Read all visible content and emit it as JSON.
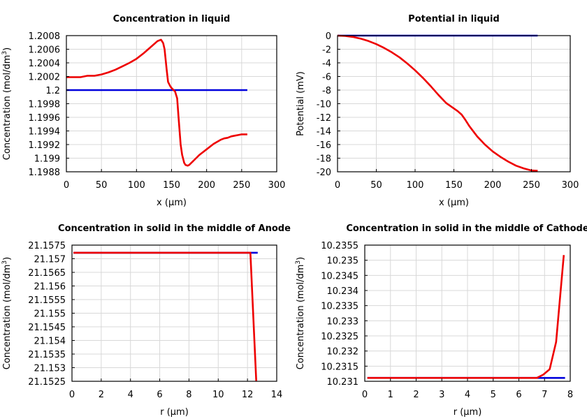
{
  "figure": {
    "background": "#ffffff"
  },
  "chart_data": [
    {
      "type": "line",
      "title": "Concentration in liquid",
      "xlabel": "x (µm)",
      "ylabel": "Concentration (mol/dm³)",
      "xlim": [
        0,
        300
      ],
      "ylim": [
        1.1988,
        1.2008
      ],
      "xticks": [
        0,
        50,
        100,
        150,
        200,
        250,
        300
      ],
      "xtick_labels": [
        "0",
        "50",
        "100",
        "150",
        "200",
        "250",
        "300"
      ],
      "yticks": [
        1.1988,
        1.199,
        1.1992,
        1.1994,
        1.1996,
        1.1998,
        1.2,
        1.2002,
        1.2004,
        1.2006,
        1.2008
      ],
      "ytick_labels": [
        "1.1988",
        "1.199",
        "1.1992",
        "1.1994",
        "1.1996",
        "1.1998",
        "1.2",
        "1.2002",
        "1.2004",
        "1.2006",
        "1.2008"
      ],
      "grid": true,
      "series": [
        {
          "color": "#0000dd",
          "x": [
            0,
            258
          ],
          "y": [
            1.2,
            1.2
          ]
        },
        {
          "color": "#ee0000",
          "x": [
            0,
            5,
            10,
            20,
            25,
            30,
            40,
            50,
            60,
            70,
            80,
            90,
            100,
            110,
            120,
            130,
            135,
            138,
            140,
            143,
            145,
            148,
            150,
            155,
            158,
            160,
            163,
            165,
            168,
            170,
            173,
            175,
            180,
            185,
            190,
            200,
            210,
            220,
            225,
            230,
            235,
            240,
            245,
            250,
            258
          ],
          "y": [
            1.20019,
            1.20019,
            1.20019,
            1.20019,
            1.2002,
            1.20021,
            1.20021,
            1.20023,
            1.20026,
            1.2003,
            1.20035,
            1.2004,
            1.20046,
            1.20054,
            1.20063,
            1.20072,
            1.20074,
            1.20069,
            1.2006,
            1.2003,
            1.20012,
            1.20006,
            1.20003,
            1.19998,
            1.19988,
            1.1996,
            1.1992,
            1.19905,
            1.19893,
            1.1989,
            1.19889,
            1.1989,
            1.19895,
            1.199,
            1.19905,
            1.19913,
            1.19921,
            1.19927,
            1.19929,
            1.1993,
            1.19932,
            1.19933,
            1.19934,
            1.19935,
            1.19935
          ]
        }
      ]
    },
    {
      "type": "line",
      "title": "Potential in liquid",
      "xlabel": "x (µm)",
      "ylabel": "Potential (mV)",
      "xlim": [
        0,
        300
      ],
      "ylim": [
        -20,
        0
      ],
      "xticks": [
        0,
        50,
        100,
        150,
        200,
        250,
        300
      ],
      "xtick_labels": [
        "0",
        "50",
        "100",
        "150",
        "200",
        "250",
        "300"
      ],
      "yticks": [
        -20,
        -18,
        -16,
        -14,
        -12,
        -10,
        -8,
        -6,
        -4,
        -2,
        0
      ],
      "ytick_labels": [
        "-20",
        "-18",
        "-16",
        "-14",
        "-12",
        "-10",
        "-8",
        "-6",
        "-4",
        "-2",
        "0"
      ],
      "grid": true,
      "series": [
        {
          "color": "#0000dd",
          "x": [
            0,
            258
          ],
          "y": [
            0,
            0
          ]
        },
        {
          "color": "#ee0000",
          "x": [
            0,
            10,
            20,
            30,
            40,
            50,
            60,
            70,
            80,
            90,
            100,
            110,
            120,
            130,
            140,
            145,
            150,
            155,
            160,
            165,
            170,
            180,
            190,
            200,
            210,
            220,
            230,
            240,
            250,
            258
          ],
          "y": [
            0,
            -0.05,
            -0.2,
            -0.45,
            -0.8,
            -1.25,
            -1.8,
            -2.45,
            -3.2,
            -4.1,
            -5.1,
            -6.2,
            -7.4,
            -8.7,
            -9.9,
            -10.3,
            -10.7,
            -11.1,
            -11.6,
            -12.4,
            -13.3,
            -14.8,
            -16.0,
            -17.0,
            -17.8,
            -18.5,
            -19.1,
            -19.5,
            -19.8,
            -19.85
          ]
        }
      ]
    },
    {
      "type": "line",
      "title": "Concentration in solid in the middle of Anode",
      "xlabel": "r (µm)",
      "ylabel": "Concentration (mol/dm³)",
      "xlim": [
        0,
        14
      ],
      "ylim": [
        21.1525,
        21.1575
      ],
      "xticks": [
        0,
        2,
        4,
        6,
        8,
        10,
        12,
        14
      ],
      "xtick_labels": [
        "0",
        "2",
        "4",
        "6",
        "8",
        "10",
        "12",
        "14"
      ],
      "yticks": [
        21.1525,
        21.153,
        21.1535,
        21.154,
        21.1545,
        21.155,
        21.1555,
        21.156,
        21.1565,
        21.157,
        21.1575
      ],
      "ytick_labels": [
        "21.1525",
        "21.153",
        "21.1535",
        "21.154",
        "21.1545",
        "21.155",
        "21.1555",
        "21.156",
        "21.1565",
        "21.157",
        "21.1575"
      ],
      "grid": true,
      "series": [
        {
          "color": "#0000dd",
          "x": [
            0.1,
            12.7
          ],
          "y": [
            21.15722,
            21.15722
          ]
        },
        {
          "color": "#ee0000",
          "x": [
            0.1,
            12.2,
            12.6
          ],
          "y": [
            21.15722,
            21.15722,
            21.1525
          ]
        }
      ]
    },
    {
      "type": "line",
      "title": "Concentration in solid in the middle of Cathode",
      "xlabel": "r (µm)",
      "ylabel": "Concentration (mol/dm³)",
      "xlim": [
        0,
        8
      ],
      "ylim": [
        10.231,
        10.2355
      ],
      "xticks": [
        0,
        1,
        2,
        3,
        4,
        5,
        6,
        7,
        8
      ],
      "xtick_labels": [
        "0",
        "1",
        "2",
        "3",
        "4",
        "5",
        "6",
        "7",
        "8"
      ],
      "yticks": [
        10.231,
        10.2315,
        10.232,
        10.2325,
        10.233,
        10.2335,
        10.234,
        10.2345,
        10.235,
        10.2355
      ],
      "ytick_labels": [
        "10.231",
        "10.2315",
        "10.232",
        "10.2325",
        "10.233",
        "10.2335",
        "10.234",
        "10.2345",
        "10.235",
        "10.2355"
      ],
      "grid": true,
      "series": [
        {
          "color": "#0000dd",
          "x": [
            0.1,
            7.8
          ],
          "y": [
            10.23111,
            10.23111
          ]
        },
        {
          "color": "#ee0000",
          "x": [
            0.1,
            6.7,
            6.95,
            7.2,
            7.45,
            7.75
          ],
          "y": [
            10.23111,
            10.23111,
            10.23122,
            10.2314,
            10.2323,
            10.23517
          ]
        }
      ]
    }
  ]
}
